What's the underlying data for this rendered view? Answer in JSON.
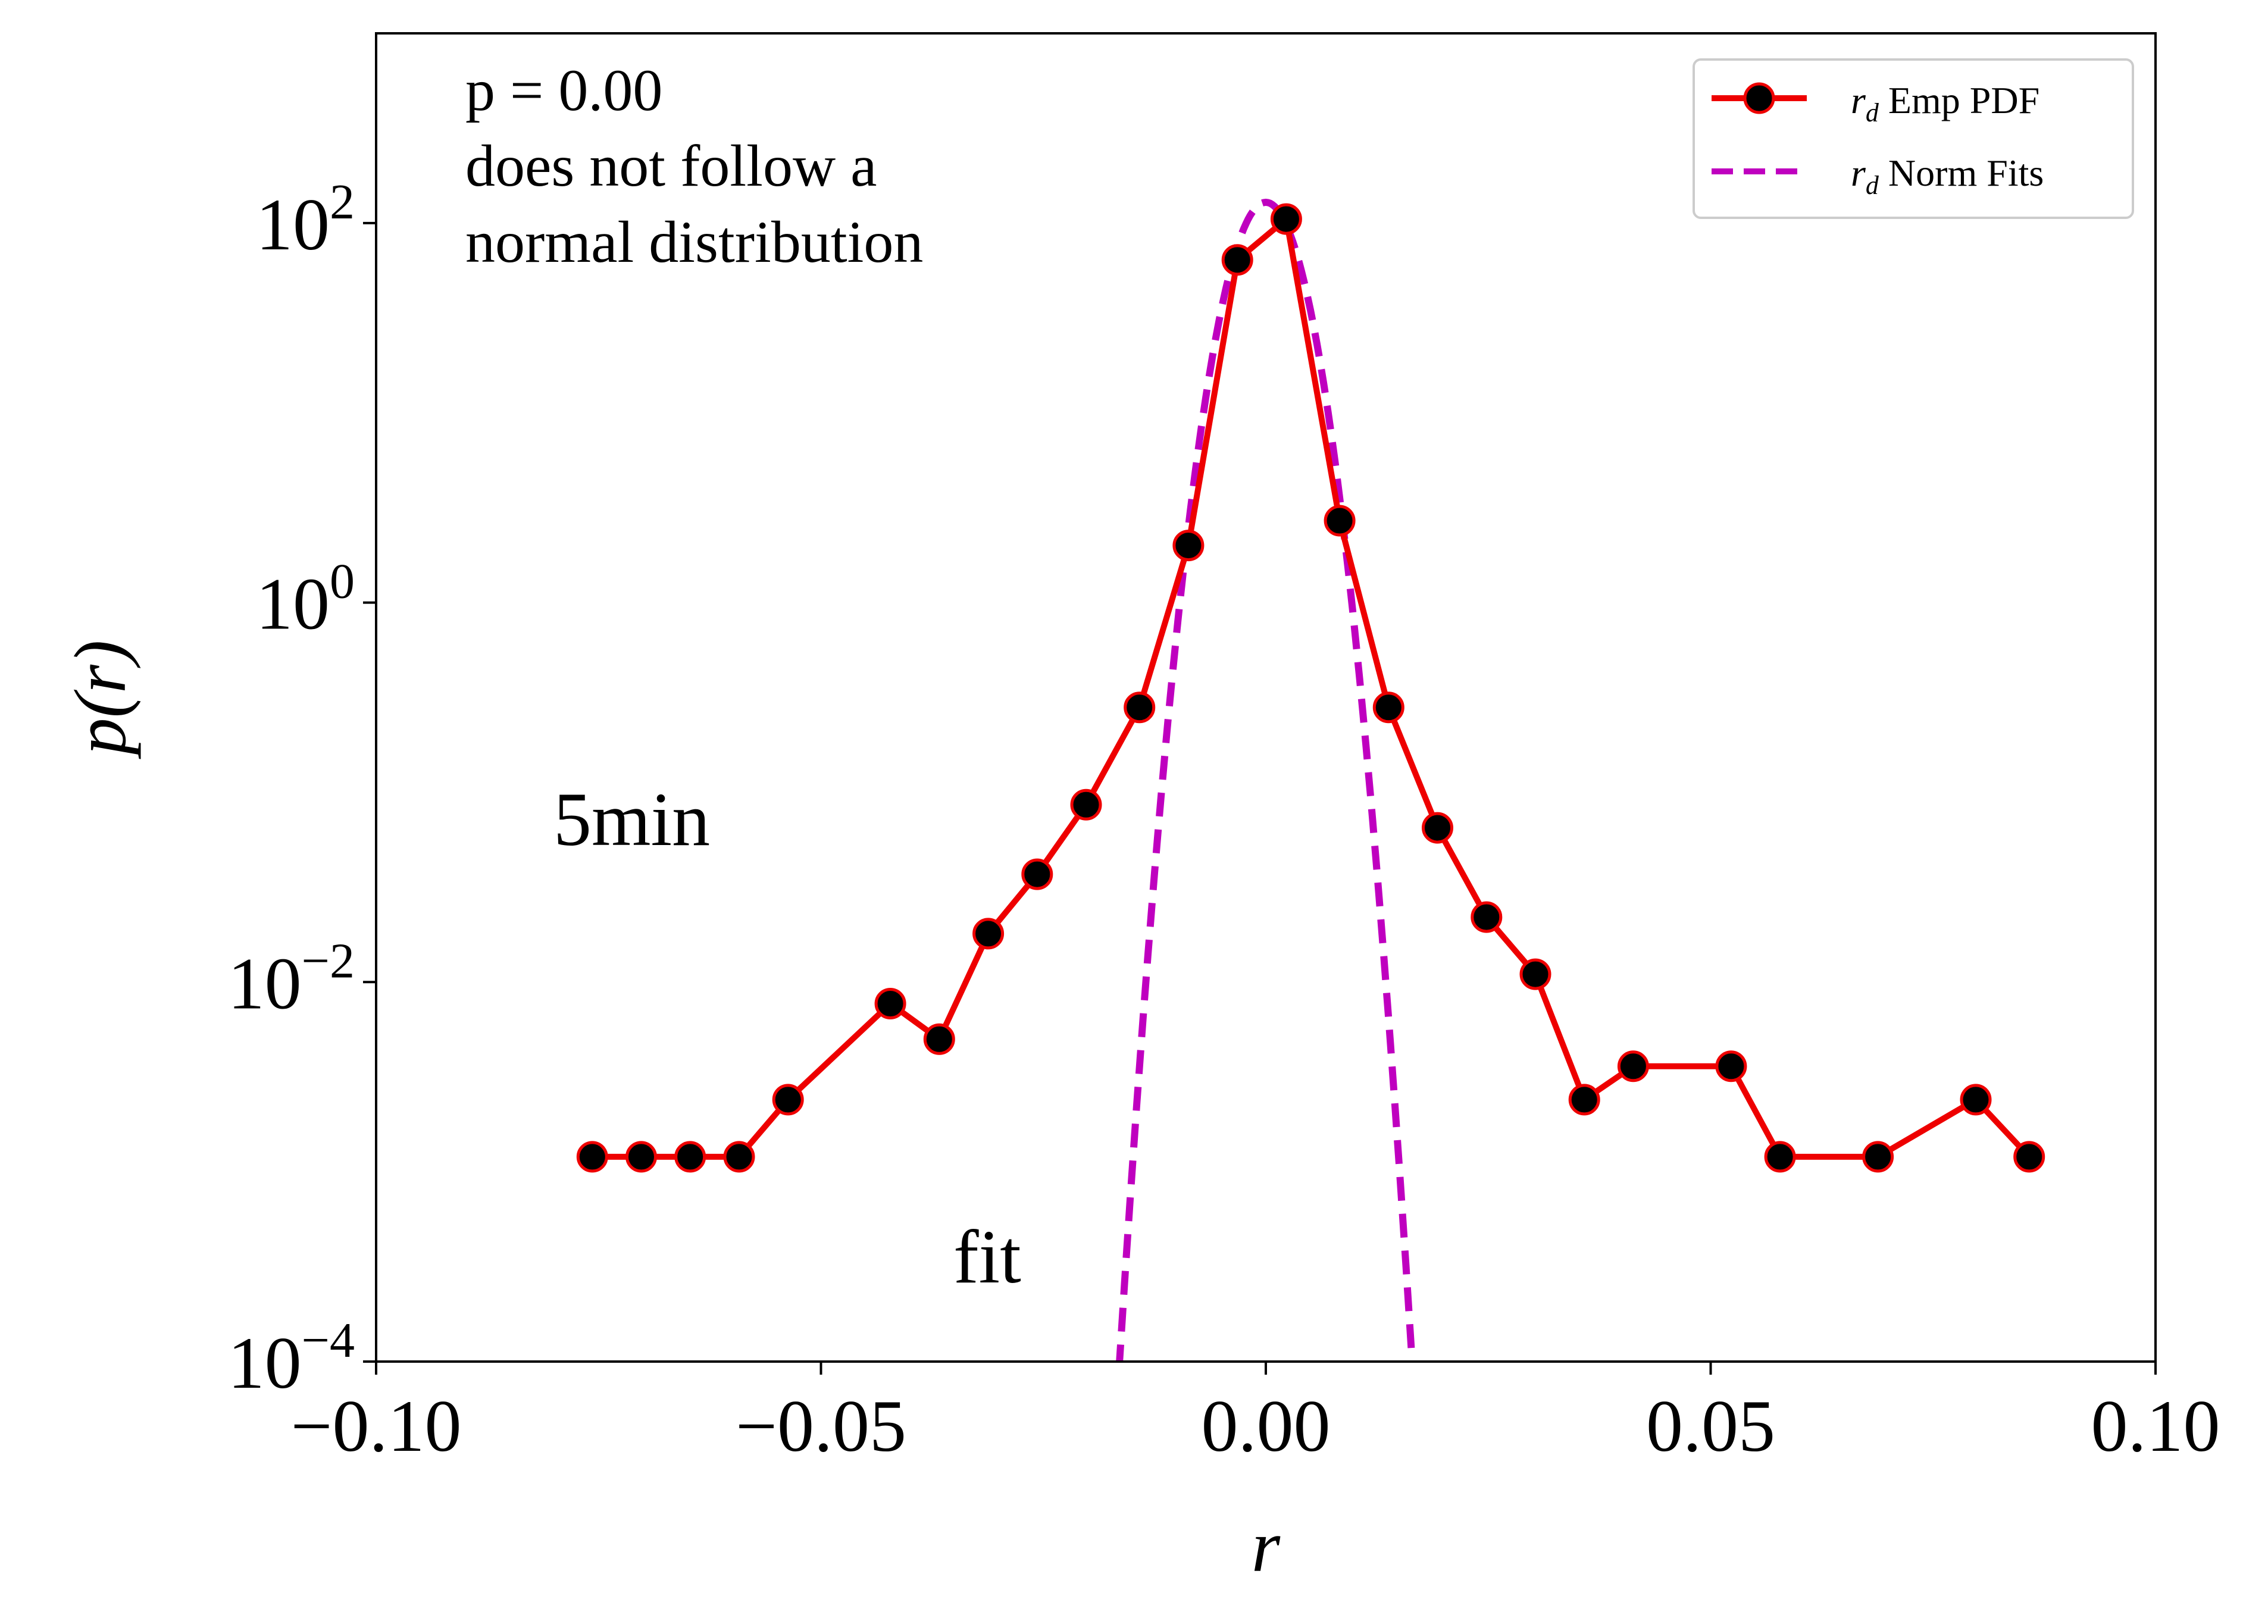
{
  "chart_data": {
    "type": "line",
    "title": "",
    "xlabel": "r",
    "ylabel": "p(r)",
    "xlim": [
      -0.1,
      0.1
    ],
    "ylim": [
      0.0001,
      1000
    ],
    "yscale": "log",
    "grid": false,
    "legend_position": "top-right",
    "x_ticks": [
      {
        "value": -0.1,
        "label": "−0.10"
      },
      {
        "value": -0.05,
        "label": "−0.05"
      },
      {
        "value": 0.0,
        "label": "0.00"
      },
      {
        "value": 0.05,
        "label": "0.05"
      },
      {
        "value": 0.1,
        "label": "0.10"
      }
    ],
    "y_ticks": [
      {
        "value": 0.0001,
        "base": "10",
        "exp": "−4"
      },
      {
        "value": 0.01,
        "base": "10",
        "exp": "−2"
      },
      {
        "value": 1,
        "base": "10",
        "exp": "0"
      },
      {
        "value": 100,
        "base": "10",
        "exp": "2"
      }
    ],
    "annotations": {
      "p_value": "p = 0.00",
      "verdict_line1": "does not follow a",
      "verdict_line2": "normal distribution",
      "interval": "5min",
      "fit": "fit"
    },
    "series": [
      {
        "name": "r_d Emp PDF",
        "legend_symbol": "r",
        "legend_subscript": "d",
        "legend_text": " Emp PDF",
        "color": "#ee0000",
        "marker_color": "#000000",
        "style": "solid-markers",
        "x": [
          -0.0757,
          -0.0702,
          -0.0647,
          -0.0592,
          -0.0537,
          -0.0422,
          -0.0367,
          -0.0312,
          -0.0257,
          -0.0202,
          -0.0142,
          -0.0087,
          -0.0032,
          0.0023,
          0.0083,
          0.0138,
          0.0193,
          0.0248,
          0.0303,
          0.0358,
          0.0413,
          0.0523,
          0.0578,
          0.0688,
          0.0798,
          0.0858
        ],
        "y": [
          0.0012,
          0.0012,
          0.0012,
          0.0012,
          0.0024,
          0.0077,
          0.005,
          0.018,
          0.037,
          0.086,
          0.28,
          2.0,
          64,
          105,
          2.7,
          0.28,
          0.065,
          0.022,
          0.011,
          0.0024,
          0.0036,
          0.0036,
          0.0012,
          0.0012,
          0.0024,
          0.0012
        ]
      },
      {
        "name": "r_d Norm Fits",
        "legend_symbol": "r",
        "legend_subscript": "d",
        "legend_text": " Norm Fits",
        "color": "#bf00bf",
        "style": "dashed",
        "normal_fit": {
          "mean": 0.0,
          "std": 0.0031
        }
      }
    ]
  }
}
